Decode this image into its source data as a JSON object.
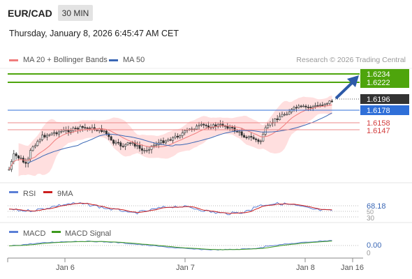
{
  "header": {
    "symbol": "EUR/CAD",
    "timeframe": "30 MIN",
    "datetime": "Thursday, January 8, 2026 6:45:47 AM CET"
  },
  "legend": {
    "ma20": "MA 20 + Bollinger Bands",
    "ma50": "MA 50",
    "source": "Research © 2026 Trading Central"
  },
  "price_labels": [
    {
      "text": "1.6234",
      "style": "green-box"
    },
    {
      "text": "1.6222",
      "style": "green-box"
    },
    {
      "text": "1.6196",
      "style": "dark-box"
    },
    {
      "text": "1.6178",
      "style": "blue-box"
    },
    {
      "text": "1.6158",
      "style": "red-text"
    },
    {
      "text": "1.6147",
      "style": "red-text"
    }
  ],
  "rsi_panel": {
    "label": "RSI",
    "signal_label": "9MA",
    "value": "68.18",
    "levels": [
      "50",
      "30"
    ]
  },
  "macd_panel": {
    "label": "MACD",
    "signal_label": "MACD Signal",
    "value": "0.00",
    "zero_label": "0"
  },
  "x_axis": {
    "labels": [
      "Jan 6",
      "Jan 7",
      "Jan 8",
      "Jan 16"
    ]
  },
  "colors": {
    "bull": "#f5f5f5",
    "bear": "#333333",
    "resistance": "#4ea50c",
    "pivot": "#2f6fd8",
    "support": "#e05252",
    "bands": "#ffd6d6",
    "ma50": "#3a67b5",
    "ma20": "#f07c7c"
  }
}
